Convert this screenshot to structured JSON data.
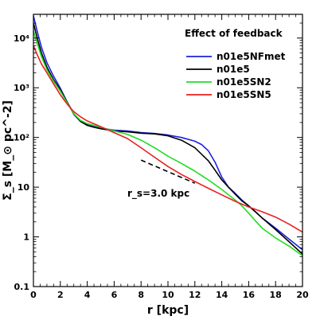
{
  "chart_data": {
    "type": "line",
    "title": "",
    "xlabel": "r [kpc]",
    "ylabel": "Σ_s [M_⊙ pc^-2]",
    "xlim": [
      0,
      20
    ],
    "ylim": [
      0.1,
      30000
    ],
    "yscale": "log",
    "x_ticks": [
      0,
      2,
      4,
      6,
      8,
      10,
      12,
      14,
      16,
      18,
      20
    ],
    "y_ticks": [
      {
        "value": 0.1,
        "label": "0.1"
      },
      {
        "value": 1,
        "label": "1"
      },
      {
        "value": 10,
        "label": "10"
      },
      {
        "value": 100,
        "label": "10²"
      },
      {
        "value": 1000,
        "label": "10³"
      },
      {
        "value": 10000,
        "label": "10⁴"
      }
    ],
    "legend": {
      "title": "Effect of feedback",
      "position": "top-right"
    },
    "annotation": {
      "text": "r_s=3.0 kpc",
      "line": {
        "x": [
          8,
          12
        ],
        "y": [
          35,
          12
        ]
      }
    },
    "series": [
      {
        "name": "n01e5NFmet",
        "color": "#1f1fe0",
        "x": [
          0.0,
          0.3,
          0.6,
          1.0,
          1.5,
          2.0,
          2.5,
          3.0,
          3.5,
          4.0,
          4.5,
          5.0,
          6.0,
          7.0,
          8.0,
          9.0,
          10.0,
          11.0,
          12.0,
          12.5,
          13.0,
          13.5,
          14.0,
          14.5,
          15.0,
          15.5,
          16.0,
          16.5,
          17.0,
          18.0,
          19.0,
          20.0
        ],
        "y": [
          28000,
          13000,
          6500,
          3200,
          1700,
          980,
          520,
          290,
          210,
          180,
          165,
          155,
          140,
          135,
          125,
          120,
          112,
          100,
          84,
          72,
          54,
          32,
          16,
          10,
          7.5,
          5.5,
          4.2,
          3.2,
          2.4,
          1.5,
          0.9,
          0.55
        ]
      },
      {
        "name": "n01e5",
        "color": "#000000",
        "x": [
          0.0,
          0.3,
          0.6,
          1.0,
          1.5,
          2.0,
          2.5,
          3.0,
          3.5,
          4.0,
          4.5,
          5.0,
          6.0,
          7.0,
          8.0,
          9.0,
          10.0,
          11.0,
          12.0,
          13.0,
          13.5,
          14.0,
          14.5,
          15.0,
          15.5,
          16.0,
          16.5,
          17.0,
          18.0,
          19.0,
          20.0
        ],
        "y": [
          20000,
          9500,
          5000,
          2600,
          1450,
          900,
          520,
          300,
          210,
          175,
          160,
          150,
          135,
          130,
          122,
          118,
          108,
          88,
          62,
          34,
          22,
          14,
          10,
          7.2,
          5.3,
          4.2,
          3.2,
          2.4,
          1.4,
          0.8,
          0.45
        ]
      },
      {
        "name": "n01e5SN2",
        "color": "#22dd22",
        "x": [
          0.0,
          0.3,
          0.6,
          1.0,
          1.5,
          2.0,
          2.5,
          3.0,
          3.5,
          4.0,
          5.0,
          6.0,
          7.0,
          8.0,
          9.0,
          10.0,
          11.0,
          12.0,
          13.0,
          14.0,
          14.5,
          15.0,
          15.5,
          16.0,
          16.5,
          17.0,
          18.0,
          19.0,
          20.0
        ],
        "y": [
          14000,
          7500,
          4200,
          2300,
          1350,
          850,
          500,
          300,
          220,
          190,
          160,
          135,
          115,
          88,
          62,
          42,
          30,
          21,
          14,
          9,
          7,
          5.5,
          4.2,
          3.0,
          2.1,
          1.5,
          0.95,
          0.65,
          0.42
        ]
      },
      {
        "name": "n01e5SN5",
        "color": "#e82020",
        "x": [
          0.0,
          0.3,
          0.6,
          1.0,
          1.5,
          2.0,
          2.5,
          3.0,
          3.5,
          4.0,
          5.0,
          6.0,
          7.0,
          8.0,
          9.0,
          10.0,
          11.0,
          12.0,
          13.0,
          14.0,
          15.0,
          16.0,
          17.0,
          18.0,
          19.0,
          20.0
        ],
        "y": [
          7000,
          4500,
          3000,
          2000,
          1200,
          720,
          470,
          330,
          260,
          215,
          165,
          125,
          95,
          62,
          40,
          26,
          18,
          13,
          9.5,
          7,
          5.2,
          4.0,
          3.2,
          2.5,
          1.8,
          1.25
        ]
      }
    ]
  }
}
